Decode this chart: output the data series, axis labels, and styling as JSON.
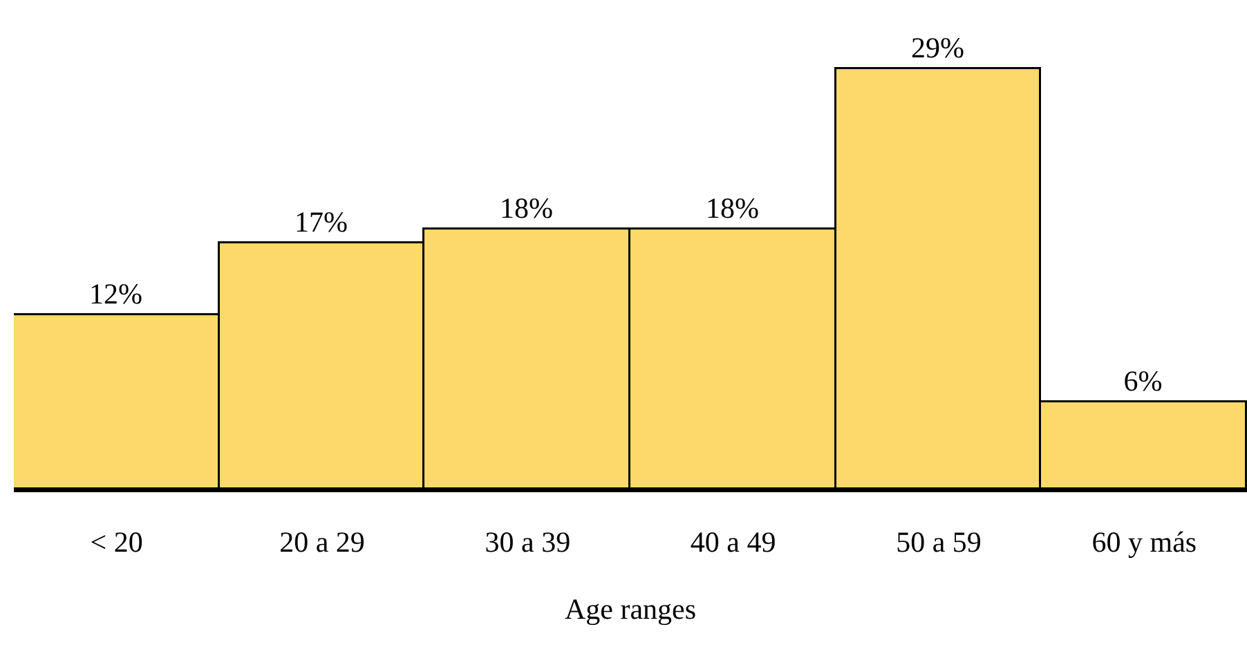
{
  "chart_data": {
    "type": "bar",
    "xlabel": "Age ranges",
    "categories": [
      "< 20",
      "20 a 29",
      "30 a 39",
      "40 a 49",
      "50 a 59",
      "60 y más"
    ],
    "values": [
      12,
      17,
      18,
      18,
      29,
      6
    ],
    "value_labels": [
      "12%",
      "17%",
      "18%",
      "18%",
      "29%",
      "6%"
    ],
    "color": "#fdd96b"
  }
}
